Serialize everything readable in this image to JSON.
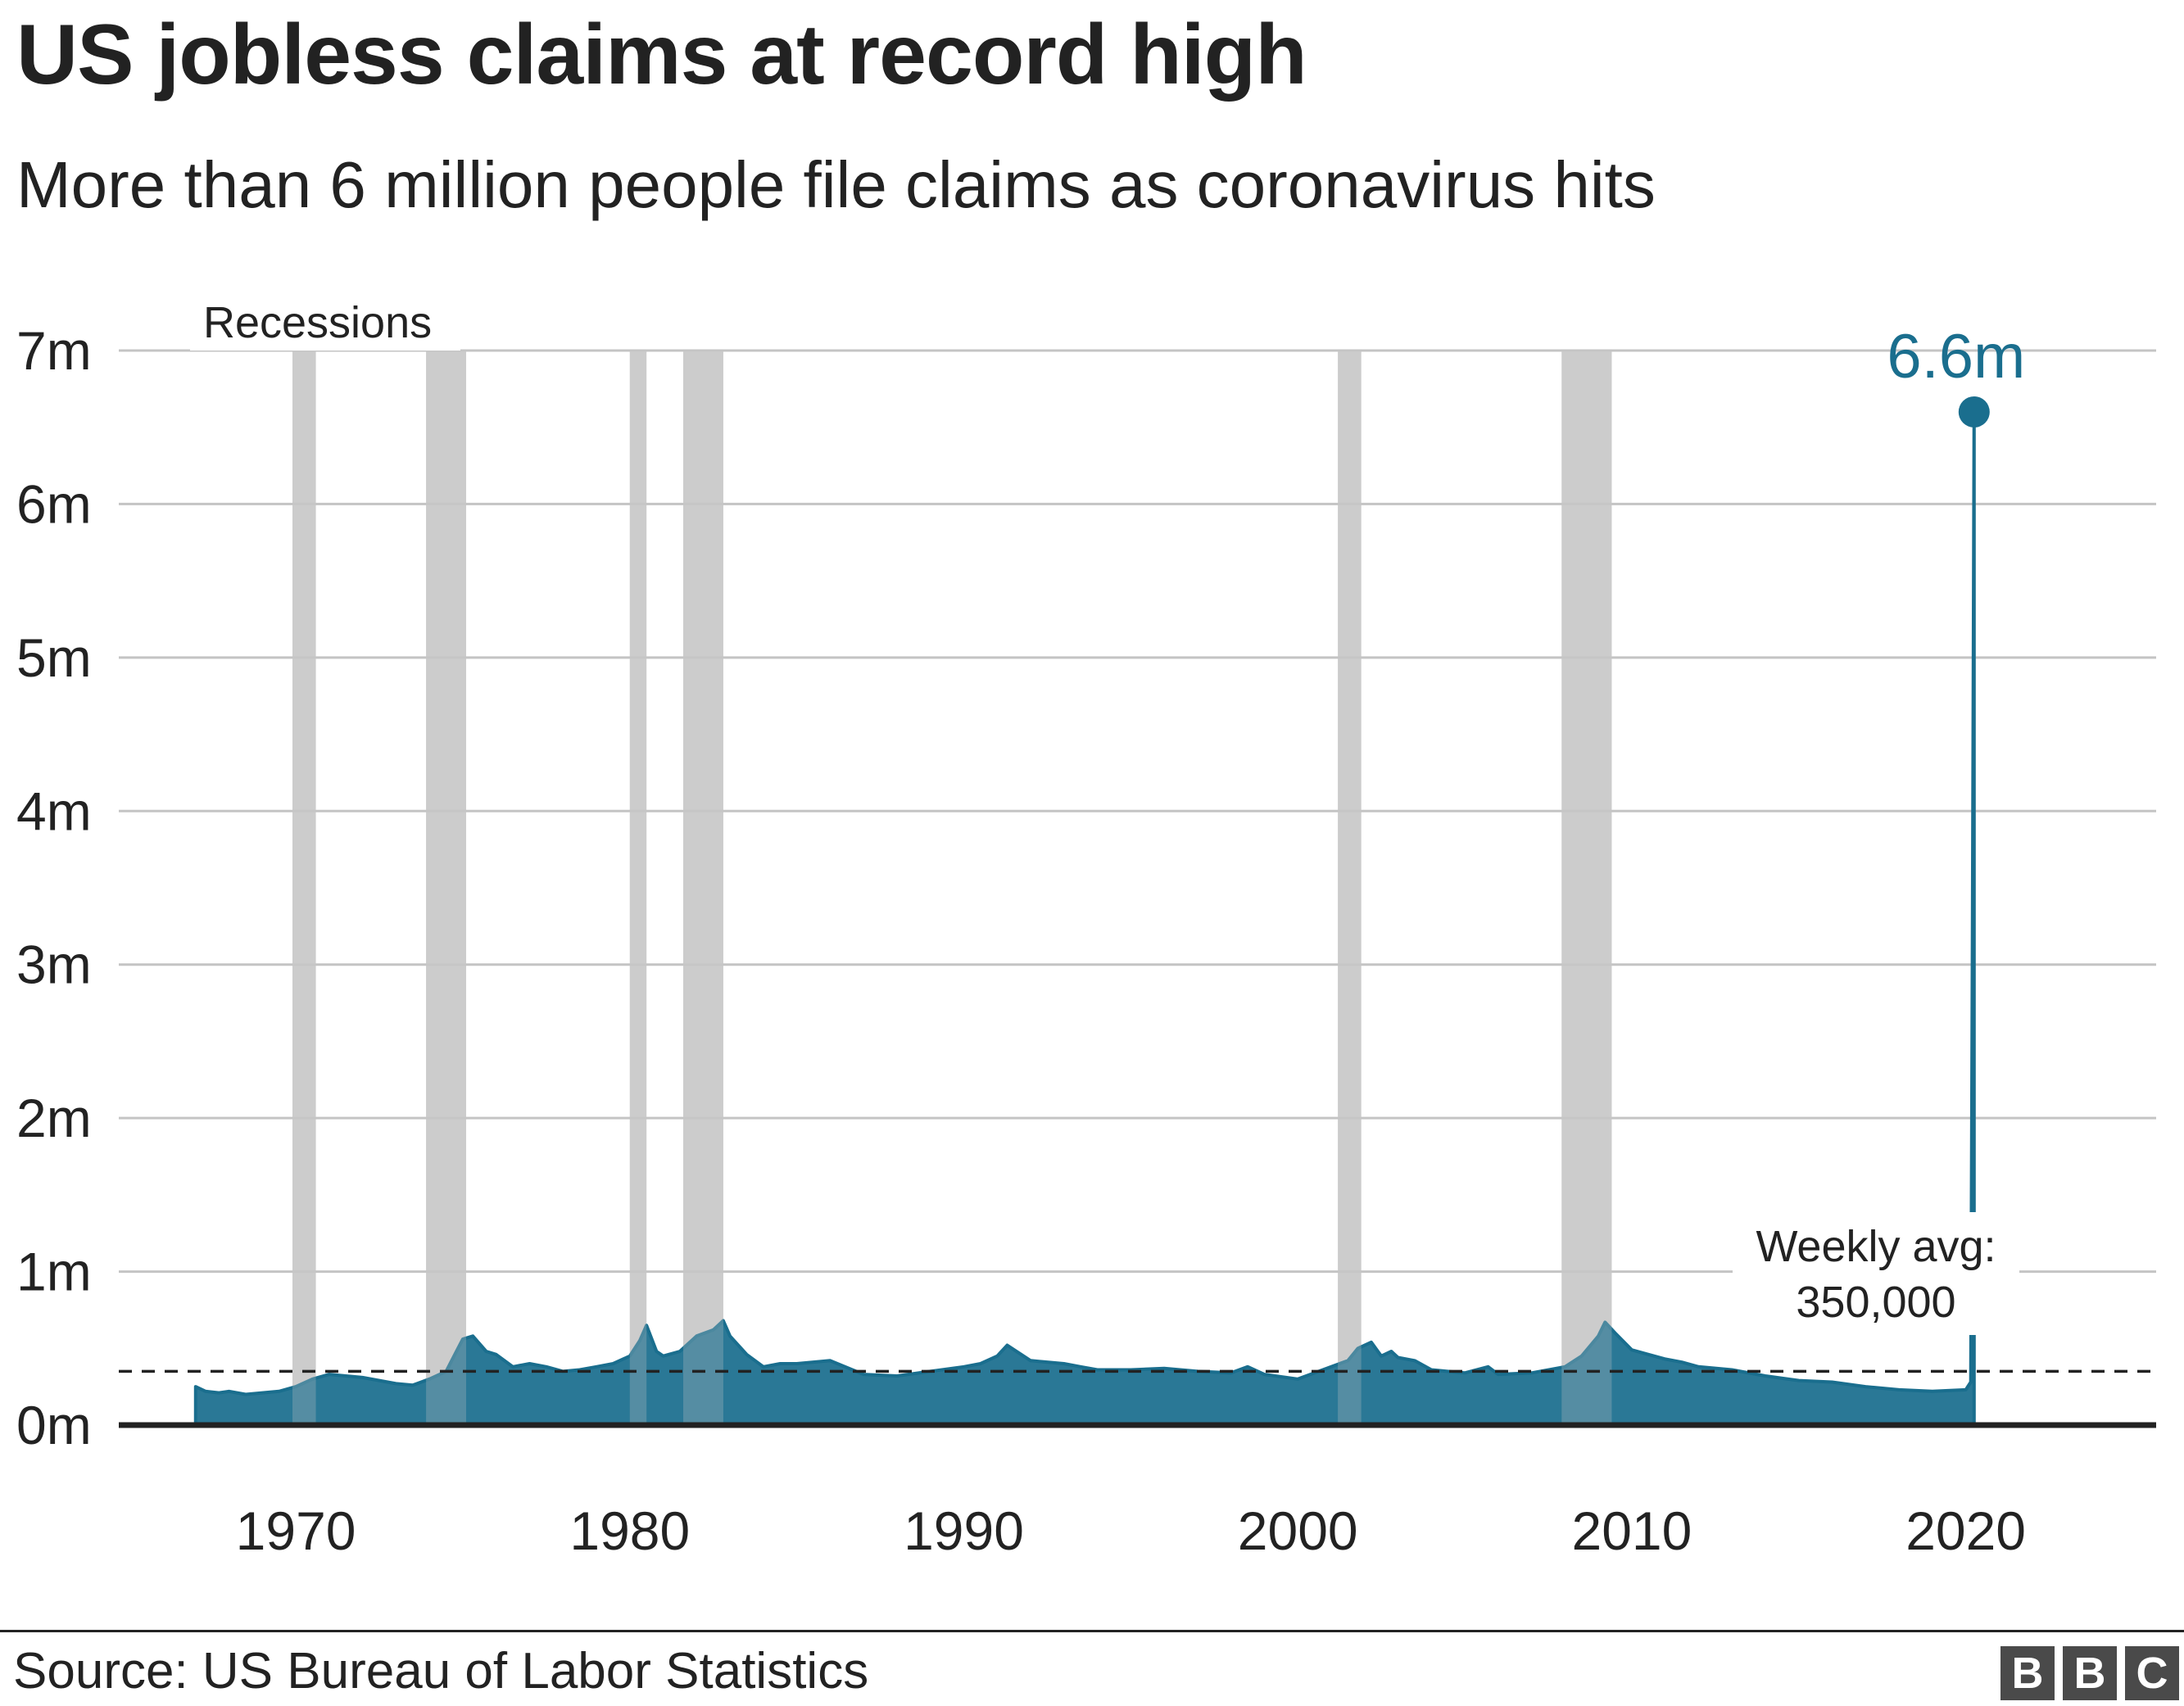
{
  "header": {
    "title": "US jobless claims at record high",
    "subtitle": "More than 6 million people file claims as coronavirus hits"
  },
  "footer": {
    "source": "Source: US Bureau of Labor Statistics",
    "logo_letters": [
      "B",
      "B",
      "C"
    ]
  },
  "colors": {
    "series": "#1a6e8e",
    "recession": "#cccccc",
    "grid": "#c4c4c4",
    "axis": "#222222",
    "label_accent": "#1a6e8e"
  },
  "chart_data": {
    "type": "area",
    "title": "US jobless claims at record high",
    "subtitle": "More than 6 million people file claims as coronavirus hits",
    "xlabel": "",
    "ylabel": "",
    "xlim": [
      1964.7,
      2025.7
    ],
    "ylim": [
      0,
      7000000
    ],
    "x_ticks": [
      1970,
      1980,
      1990,
      2000,
      2010,
      2020
    ],
    "x_tick_labels": [
      "1970",
      "1980",
      "1990",
      "2000",
      "2010",
      "2020"
    ],
    "y_ticks": [
      0,
      1000000,
      2000000,
      3000000,
      4000000,
      5000000,
      6000000,
      7000000
    ],
    "y_tick_labels": [
      "0m",
      "1m",
      "2m",
      "3m",
      "4m",
      "5m",
      "6m",
      "7m"
    ],
    "grid": true,
    "series": [
      {
        "name": "",
        "x": [
          1967.0,
          1967.3,
          1967.7,
          1968.0,
          1968.5,
          1969.0,
          1969.5,
          1970.0,
          1970.5,
          1971.0,
          1971.5,
          1972.0,
          1972.5,
          1973.0,
          1973.5,
          1974.0,
          1974.5,
          1975.0,
          1975.3,
          1975.7,
          1976.0,
          1976.5,
          1977.0,
          1977.5,
          1978.0,
          1978.5,
          1979.0,
          1979.5,
          1980.0,
          1980.3,
          1980.5,
          1980.8,
          1981.0,
          1981.5,
          1982.0,
          1982.5,
          1982.8,
          1983.0,
          1983.5,
          1984.0,
          1984.5,
          1985.0,
          1986.0,
          1987.0,
          1988.0,
          1989.0,
          1990.0,
          1990.5,
          1991.0,
          1991.3,
          1992.0,
          1993.0,
          1993.5,
          1994.0,
          1995.0,
          1996.0,
          1997.0,
          1998.0,
          1998.5,
          1999.0,
          2000.0,
          2001.0,
          2001.5,
          2001.8,
          2002.2,
          2002.5,
          2002.8,
          2003.0,
          2003.5,
          2004.0,
          2005.0,
          2005.7,
          2006.0,
          2007.0,
          2008.0,
          2008.5,
          2009.0,
          2009.2,
          2009.5,
          2010.0,
          2011.0,
          2011.5,
          2012.0,
          2013.0,
          2014.0,
          2015.0,
          2016.0,
          2017.0,
          2018.0,
          2019.0,
          2020.0,
          2020.15,
          2020.2,
          2020.25
        ],
        "values": [
          250000,
          220000,
          210000,
          220000,
          200000,
          210000,
          220000,
          250000,
          300000,
          330000,
          320000,
          310000,
          290000,
          270000,
          260000,
          300000,
          350000,
          560000,
          580000,
          480000,
          460000,
          380000,
          400000,
          380000,
          350000,
          360000,
          380000,
          400000,
          450000,
          550000,
          650000,
          480000,
          450000,
          480000,
          580000,
          620000,
          680000,
          580000,
          460000,
          380000,
          400000,
          400000,
          420000,
          330000,
          320000,
          350000,
          380000,
          400000,
          450000,
          520000,
          420000,
          400000,
          380000,
          360000,
          360000,
          370000,
          350000,
          340000,
          380000,
          330000,
          300000,
          380000,
          420000,
          500000,
          540000,
          450000,
          480000,
          440000,
          420000,
          360000,
          340000,
          380000,
          330000,
          340000,
          380000,
          450000,
          580000,
          670000,
          600000,
          490000,
          430000,
          410000,
          380000,
          360000,
          320000,
          290000,
          280000,
          250000,
          230000,
          220000,
          230000,
          280000,
          3300000,
          6600000
        ]
      }
    ],
    "recessions": [
      [
        1969.9,
        1970.6
      ],
      [
        1973.9,
        1975.1
      ],
      [
        1980.0,
        1980.5
      ],
      [
        1981.6,
        1982.8
      ],
      [
        2001.2,
        2001.9
      ],
      [
        2007.9,
        2009.4
      ]
    ],
    "reference_line": {
      "value": 350000,
      "style": "dashed"
    },
    "annotations": {
      "recessions_label": "Recessions",
      "avg_label_line1": "Weekly avg:",
      "avg_label_line2": "350,000",
      "last_value_label": "6.6m"
    },
    "last_point": {
      "x": 2020.25,
      "value": 6600000
    }
  }
}
